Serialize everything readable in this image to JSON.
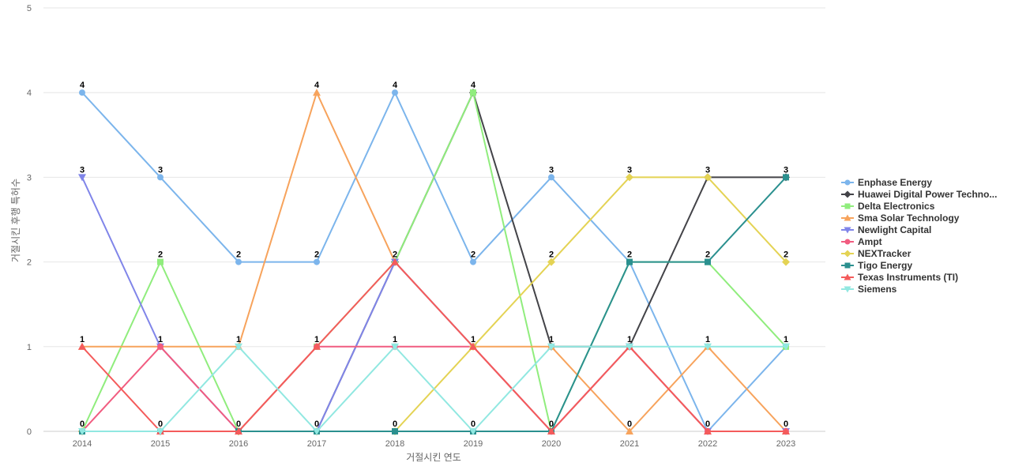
{
  "chart_data": {
    "type": "line",
    "title": "",
    "xlabel": "거절시킨 연도",
    "ylabel": "거절시킨 후행 특허수",
    "x": [
      "2014",
      "2015",
      "2016",
      "2017",
      "2018",
      "2019",
      "2020",
      "2021",
      "2022",
      "2023"
    ],
    "ylim": [
      0,
      5
    ],
    "yticks": [
      0,
      1,
      2,
      3,
      4,
      5
    ],
    "grid": true,
    "legend_position": "right",
    "series": [
      {
        "name": "Enphase Energy",
        "color": "#7cb5ec",
        "marker": "circle",
        "values": [
          4,
          3,
          2,
          2,
          4,
          2,
          3,
          2,
          0,
          1
        ]
      },
      {
        "name": "Huawei Digital Power Techno...",
        "color": "#434348",
        "marker": "diamond",
        "values": [
          0,
          0,
          0,
          0,
          2,
          4,
          1,
          1,
          3,
          3
        ]
      },
      {
        "name": "Delta Electronics",
        "color": "#90ed7d",
        "marker": "square",
        "values": [
          0,
          2,
          0,
          1,
          2,
          4,
          0,
          2,
          2,
          1
        ]
      },
      {
        "name": "Sma Solar Technology",
        "color": "#f7a35c",
        "marker": "triangle",
        "values": [
          1,
          1,
          1,
          4,
          2,
          1,
          1,
          0,
          1,
          0
        ]
      },
      {
        "name": "Newlight Capital",
        "color": "#8085e9",
        "marker": "triangle-down",
        "values": [
          3,
          1,
          0,
          0,
          2,
          1,
          0,
          1,
          0,
          0
        ]
      },
      {
        "name": "Ampt",
        "color": "#f15c80",
        "marker": "circle",
        "values": [
          0,
          1,
          0,
          1,
          1,
          1,
          0,
          1,
          0,
          0
        ]
      },
      {
        "name": "NEXTracker",
        "color": "#e4d354",
        "marker": "diamond",
        "values": [
          0,
          0,
          0,
          0,
          0,
          1,
          2,
          3,
          3,
          2
        ]
      },
      {
        "name": "Tigo Energy",
        "color": "#2b908f",
        "marker": "square",
        "values": [
          0,
          0,
          0,
          0,
          0,
          0,
          0,
          2,
          2,
          3
        ]
      },
      {
        "name": "Texas Instruments (TI)",
        "color": "#f45b5b",
        "marker": "triangle",
        "values": [
          1,
          0,
          0,
          1,
          2,
          1,
          0,
          1,
          0,
          0
        ]
      },
      {
        "name": "Siemens",
        "color": "#91e8e1",
        "marker": "triangle-down",
        "values": [
          0,
          0,
          1,
          0,
          1,
          0,
          1,
          1,
          1,
          1
        ]
      }
    ],
    "data_labels": [
      {
        "x": "2014",
        "value": 4
      },
      {
        "x": "2014",
        "value": 3
      },
      {
        "x": "2014",
        "value": 1
      },
      {
        "x": "2014",
        "value": 0
      },
      {
        "x": "2015",
        "value": 3
      },
      {
        "x": "2015",
        "value": 2
      },
      {
        "x": "2015",
        "value": 1
      },
      {
        "x": "2015",
        "value": 0
      },
      {
        "x": "2016",
        "value": 2
      },
      {
        "x": "2016",
        "value": 1
      },
      {
        "x": "2016",
        "value": 0
      },
      {
        "x": "2017",
        "value": 4
      },
      {
        "x": "2017",
        "value": 2
      },
      {
        "x": "2017",
        "value": 1
      },
      {
        "x": "2017",
        "value": 0
      },
      {
        "x": "2018",
        "value": 4
      },
      {
        "x": "2018",
        "value": 2
      },
      {
        "x": "2018",
        "value": 1
      },
      {
        "x": "2018",
        "value": 0
      },
      {
        "x": "2019",
        "value": 4
      },
      {
        "x": "2019",
        "value": 2
      },
      {
        "x": "2019",
        "value": 1
      },
      {
        "x": "2019",
        "value": 0
      },
      {
        "x": "2020",
        "value": 3
      },
      {
        "x": "2020",
        "value": 2
      },
      {
        "x": "2020",
        "value": 1
      },
      {
        "x": "2020",
        "value": 0
      },
      {
        "x": "2021",
        "value": 3
      },
      {
        "x": "2021",
        "value": 2
      },
      {
        "x": "2021",
        "value": 1
      },
      {
        "x": "2021",
        "value": 0
      },
      {
        "x": "2022",
        "value": 3
      },
      {
        "x": "2022",
        "value": 2
      },
      {
        "x": "2022",
        "value": 1
      },
      {
        "x": "2022",
        "value": 0
      },
      {
        "x": "2023",
        "value": 3
      },
      {
        "x": "2023",
        "value": 2
      },
      {
        "x": "2023",
        "value": 1
      },
      {
        "x": "2023",
        "value": 0
      }
    ]
  }
}
